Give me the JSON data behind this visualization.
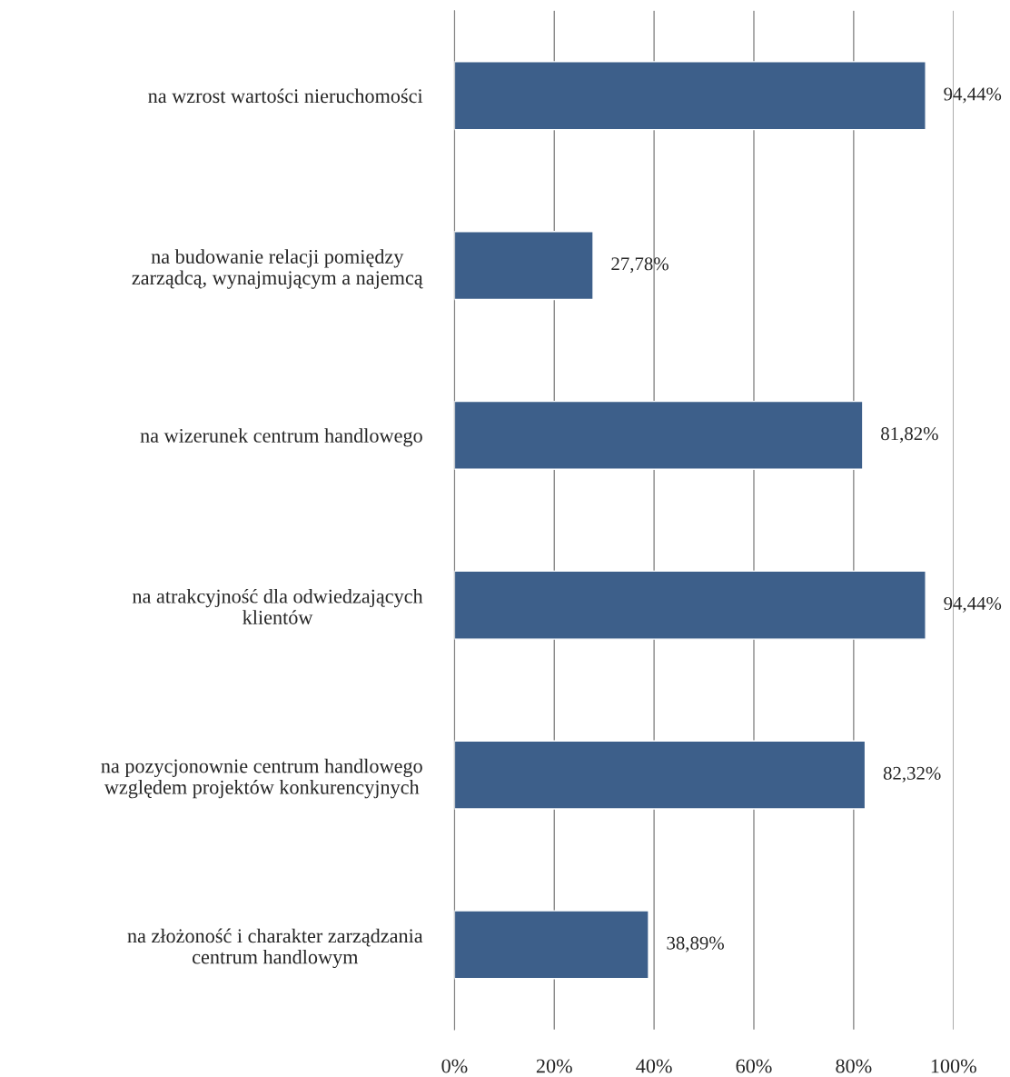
{
  "chart_data": {
    "type": "bar",
    "orientation": "horizontal",
    "categories": [
      "na wzrost wartości nieruchomości",
      "na budowanie relacji pomiędzy\nzarządcą, wynajmującym a najemcą",
      "na wizerunek centrum handlowego",
      "na atrakcyjność dla odwiedzających\nklientów",
      "na pozycjonownie centrum handlowego\nwzględem projektów konkurencyjnych",
      "na złożoność i charakter zarządzania\ncentrum handlowym"
    ],
    "values": [
      94.44,
      27.78,
      81.82,
      94.44,
      82.32,
      38.89
    ],
    "value_labels": [
      "94,44%",
      "27,78%",
      "81,82%",
      "94,44%",
      "82,32%",
      "38,89%"
    ],
    "color": "#3d5f8a",
    "xlim": [
      0,
      100
    ],
    "xticks": [
      {
        "value": 0,
        "label": "0%"
      },
      {
        "value": 20,
        "label": "20%"
      },
      {
        "value": 40,
        "label": "40%"
      },
      {
        "value": 60,
        "label": "60%"
      },
      {
        "value": 80,
        "label": "80%"
      },
      {
        "value": 100,
        "label": "100%"
      }
    ],
    "grid": "x"
  }
}
